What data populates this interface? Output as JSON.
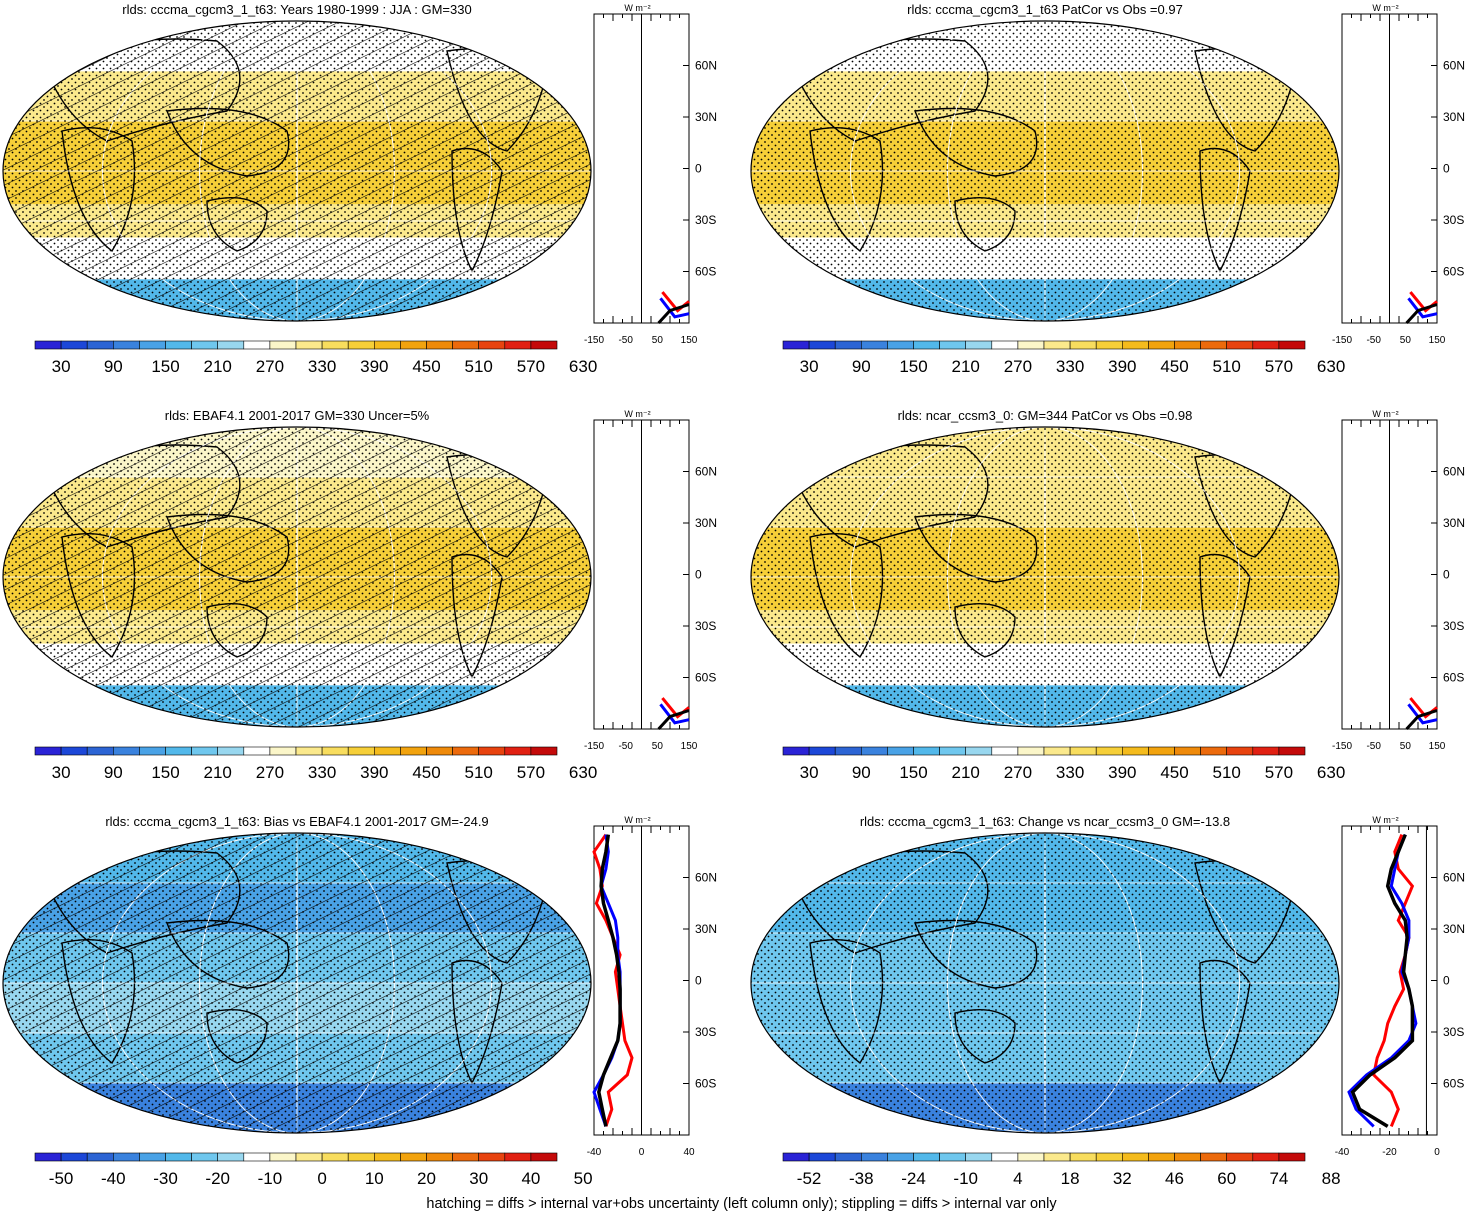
{
  "footer": "hatching = diffs > internal var+obs uncertainty (left column only); stippling = diffs > internal var only",
  "colors": {
    "abs": [
      "#2a23d6",
      "#1c47d8",
      "#2c64d4",
      "#3a82de",
      "#49a2e6",
      "#52b8ea",
      "#6fc7ee",
      "#98d7ef",
      "#ffffff",
      "#fbf6c9",
      "#fbe98c",
      "#f8dd5e",
      "#f6cf38",
      "#f4bb1d",
      "#f2a30e",
      "#ef8a0a",
      "#ec6a0c",
      "#e8430f",
      "#e12012",
      "#c40a0a"
    ],
    "diff": [
      "#2a23d6",
      "#1c47d8",
      "#2c64d4",
      "#3a82de",
      "#49a2e6",
      "#52b8ea",
      "#6fc7ee",
      "#98d7ef",
      "#ffffff",
      "#fbf6c9",
      "#fbe98c",
      "#f8dd5e",
      "#f6cf38",
      "#f4bb1d",
      "#f2a30e",
      "#ef8a0a",
      "#ec6a0c",
      "#e8430f",
      "#e12012",
      "#c40a0a"
    ]
  },
  "lat_labels": [
    "60N",
    "30N",
    "0",
    "30S",
    "60S"
  ],
  "panels": [
    {
      "id": "p1",
      "title": "rlds: cccma_cgcm3_1_t63: Years 1980-1999 : JJA : GM=330",
      "palette": "abs",
      "hatch": true,
      "stipple": true,
      "colorbar_labels": [
        "30",
        "90",
        "150",
        "210",
        "270",
        "330",
        "390",
        "450",
        "510",
        "570",
        "630"
      ],
      "profile_xticks": [
        "-150",
        "-50",
        "50",
        "150"
      ],
      "profile_units": "W m⁻²"
    },
    {
      "id": "p2",
      "title": "rlds: cccma_cgcm3_1_t63 PatCor vs Obs =0.97",
      "palette": "abs",
      "hatch": false,
      "stipple": true,
      "colorbar_labels": [
        "30",
        "90",
        "150",
        "210",
        "270",
        "330",
        "390",
        "450",
        "510",
        "570",
        "630"
      ],
      "profile_xticks": [
        "-150",
        "-50",
        "50",
        "150"
      ],
      "profile_units": "W m⁻²"
    },
    {
      "id": "p3",
      "title": "rlds: EBAF4.1 2001-2017 GM=330 Uncer=5%",
      "palette": "abs",
      "hatch": true,
      "stipple": true,
      "colorbar_labels": [
        "30",
        "90",
        "150",
        "210",
        "270",
        "330",
        "390",
        "450",
        "510",
        "570",
        "630"
      ],
      "profile_xticks": [
        "-150",
        "-50",
        "50",
        "150"
      ],
      "profile_units": "W m⁻²"
    },
    {
      "id": "p4",
      "title": "rlds: ncar_ccsm3_0: GM=344 PatCor vs Obs =0.98",
      "palette": "abs",
      "hatch": false,
      "stipple": true,
      "colorbar_labels": [
        "30",
        "90",
        "150",
        "210",
        "270",
        "330",
        "390",
        "450",
        "510",
        "570",
        "630"
      ],
      "profile_xticks": [
        "-150",
        "-50",
        "50",
        "150"
      ],
      "profile_units": "W m⁻²"
    },
    {
      "id": "p5",
      "title": "rlds: cccma_cgcm3_1_t63: Bias vs EBAF4.1 2001-2017 GM=-24.9",
      "palette": "diff",
      "hatch": true,
      "stipple": true,
      "colorbar_labels": [
        "-50",
        "-40",
        "-30",
        "-20",
        "-10",
        "0",
        "10",
        "20",
        "30",
        "40",
        "50"
      ],
      "profile_xticks": [
        "-40",
        "0",
        "40"
      ],
      "profile_units": "W m⁻²"
    },
    {
      "id": "p6",
      "title": "rlds: cccma_cgcm3_1_t63: Change vs ncar_ccsm3_0 GM=-13.8",
      "palette": "diff",
      "hatch": false,
      "stipple": true,
      "colorbar_labels": [
        "-52",
        "-38",
        "-24",
        "-10",
        "4",
        "18",
        "32",
        "46",
        "60",
        "74",
        "88"
      ],
      "profile_xticks": [
        "-40",
        "-20",
        "0"
      ],
      "profile_units": "W m⁻²"
    }
  ],
  "chart_data": [
    {
      "type": "heatmap",
      "title": "rlds: cccma_cgcm3_1_t63: Years 1980-1999 : JJA : GM=330",
      "colorbar": {
        "levels": [
          30,
          90,
          150,
          210,
          270,
          330,
          390,
          450,
          510,
          570,
          630
        ]
      },
      "zonal_bands": [
        {
          "lat": [
            60,
            90
          ],
          "value": 270
        },
        {
          "lat": [
            30,
            60
          ],
          "value": 330
        },
        {
          "lat": [
            -20,
            30
          ],
          "value": 410
        },
        {
          "lat": [
            -40,
            -20
          ],
          "value": 330
        },
        {
          "lat": [
            -65,
            -40
          ],
          "value": 270
        },
        {
          "lat": [
            -90,
            -65
          ],
          "value": 180
        }
      ],
      "profile": {
        "xlim": [
          -150,
          150
        ],
        "ylim": [
          -90,
          90
        ]
      }
    },
    {
      "type": "heatmap",
      "title": "rlds: cccma_cgcm3_1_t63 PatCor vs Obs =0.97",
      "colorbar": {
        "levels": [
          30,
          90,
          150,
          210,
          270,
          330,
          390,
          450,
          510,
          570,
          630
        ]
      },
      "zonal_bands": [
        {
          "lat": [
            60,
            90
          ],
          "value": 270
        },
        {
          "lat": [
            30,
            60
          ],
          "value": 330
        },
        {
          "lat": [
            -20,
            30
          ],
          "value": 410
        },
        {
          "lat": [
            -40,
            -20
          ],
          "value": 330
        },
        {
          "lat": [
            -65,
            -40
          ],
          "value": 270
        },
        {
          "lat": [
            -90,
            -65
          ],
          "value": 180
        }
      ],
      "profile": {
        "xlim": [
          -150,
          150
        ],
        "ylim": [
          -90,
          90
        ]
      }
    },
    {
      "type": "heatmap",
      "title": "rlds: EBAF4.1 2001-2017 GM=330 Uncer=5%",
      "colorbar": {
        "levels": [
          30,
          90,
          150,
          210,
          270,
          330,
          390,
          450,
          510,
          570,
          630
        ]
      },
      "zonal_bands": [
        {
          "lat": [
            60,
            90
          ],
          "value": 300
        },
        {
          "lat": [
            30,
            60
          ],
          "value": 360
        },
        {
          "lat": [
            -20,
            30
          ],
          "value": 410
        },
        {
          "lat": [
            -40,
            -20
          ],
          "value": 340
        },
        {
          "lat": [
            -65,
            -40
          ],
          "value": 270
        },
        {
          "lat": [
            -90,
            -65
          ],
          "value": 180
        }
      ],
      "profile": {
        "xlim": [
          -150,
          150
        ],
        "ylim": [
          -90,
          90
        ]
      }
    },
    {
      "type": "heatmap",
      "title": "rlds: ncar_ccsm3_0: GM=344 PatCor vs Obs =0.98",
      "colorbar": {
        "levels": [
          30,
          90,
          150,
          210,
          270,
          330,
          390,
          450,
          510,
          570,
          630
        ]
      },
      "zonal_bands": [
        {
          "lat": [
            60,
            90
          ],
          "value": 330
        },
        {
          "lat": [
            30,
            60
          ],
          "value": 360
        },
        {
          "lat": [
            -20,
            30
          ],
          "value": 420
        },
        {
          "lat": [
            -40,
            -20
          ],
          "value": 350
        },
        {
          "lat": [
            -65,
            -40
          ],
          "value": 280
        },
        {
          "lat": [
            -90,
            -65
          ],
          "value": 180
        }
      ],
      "profile": {
        "xlim": [
          -150,
          150
        ],
        "ylim": [
          -90,
          90
        ]
      }
    },
    {
      "type": "heatmap",
      "title": "rlds: cccma_cgcm3_1_t63: Bias vs EBAF4.1 2001-2017 GM=-24.9",
      "colorbar": {
        "levels": [
          -50,
          -40,
          -30,
          -20,
          -10,
          0,
          10,
          20,
          30,
          40,
          50
        ]
      },
      "zonal_bands": [
        {
          "lat": [
            60,
            90
          ],
          "value": -25
        },
        {
          "lat": [
            30,
            60
          ],
          "value": -35
        },
        {
          "lat": [
            0,
            30
          ],
          "value": -22
        },
        {
          "lat": [
            -30,
            0
          ],
          "value": -18
        },
        {
          "lat": [
            -60,
            -30
          ],
          "value": -20
        },
        {
          "lat": [
            -90,
            -60
          ],
          "value": -40
        }
      ],
      "profile": {
        "xlim": [
          -40,
          40
        ],
        "ylim": [
          -90,
          90
        ],
        "series": [
          {
            "color": "red",
            "lat": [
              85,
              75,
              65,
              55,
              45,
              35,
              25,
              15,
              5,
              -5,
              -15,
              -25,
              -35,
              -45,
              -55,
              -65,
              -75,
              -85
            ],
            "value": [
              -30,
              -40,
              -35,
              -33,
              -38,
              -30,
              -24,
              -18,
              -22,
              -20,
              -18,
              -16,
              -14,
              -8,
              -12,
              -28,
              -25,
              -30
            ]
          },
          {
            "color": "blue",
            "lat": [
              85,
              75,
              65,
              55,
              45,
              35,
              25,
              15,
              5,
              -5,
              -15,
              -25,
              -35,
              -45,
              -55,
              -65,
              -75,
              -85
            ],
            "value": [
              -30,
              -28,
              -30,
              -34,
              -28,
              -22,
              -20,
              -20,
              -18,
              -18,
              -18,
              -18,
              -20,
              -25,
              -32,
              -40,
              -35,
              -30
            ]
          },
          {
            "color": "black",
            "lat": [
              85,
              75,
              65,
              55,
              45,
              35,
              25,
              15,
              5,
              -5,
              -15,
              -25,
              -35,
              -45,
              -55,
              -65,
              -75,
              -85
            ],
            "value": [
              -28,
              -30,
              -33,
              -34,
              -32,
              -28,
              -24,
              -21,
              -19,
              -18,
              -18,
              -18,
              -20,
              -26,
              -32,
              -36,
              -33,
              -30
            ]
          }
        ]
      }
    },
    {
      "type": "heatmap",
      "title": "rlds: cccma_cgcm3_1_t63: Change vs ncar_ccsm3_0 GM=-13.8",
      "colorbar": {
        "levels": [
          -52,
          -38,
          -24,
          -10,
          4,
          18,
          32,
          46,
          60,
          74,
          88
        ]
      },
      "zonal_bands": [
        {
          "lat": [
            60,
            90
          ],
          "value": -24
        },
        {
          "lat": [
            30,
            60
          ],
          "value": -18
        },
        {
          "lat": [
            0,
            30
          ],
          "value": -14
        },
        {
          "lat": [
            -30,
            0
          ],
          "value": -12
        },
        {
          "lat": [
            -60,
            -30
          ],
          "value": -14
        },
        {
          "lat": [
            -90,
            -60
          ],
          "value": -38
        }
      ],
      "profile": {
        "xlim": [
          -48,
          6
        ],
        "ylim": [
          -90,
          90
        ],
        "series": [
          {
            "color": "red",
            "lat": [
              85,
              75,
              65,
              55,
              45,
              35,
              25,
              15,
              5,
              -5,
              -15,
              -25,
              -35,
              -45,
              -55,
              -65,
              -75,
              -85
            ],
            "value": [
              -14,
              -18,
              -16,
              -8,
              -12,
              -16,
              -10,
              -12,
              -15,
              -13,
              -18,
              -22,
              -24,
              -28,
              -30,
              -20,
              -16,
              -20
            ]
          },
          {
            "color": "blue",
            "lat": [
              85,
              75,
              65,
              55,
              45,
              35,
              25,
              15,
              5,
              -5,
              -15,
              -25,
              -35,
              -45,
              -55,
              -65,
              -75,
              -85
            ],
            "value": [
              -12,
              -16,
              -18,
              -20,
              -14,
              -10,
              -10,
              -12,
              -14,
              -10,
              -8,
              -6,
              -10,
              -20,
              -34,
              -44,
              -40,
              -30
            ]
          },
          {
            "color": "black",
            "lat": [
              85,
              75,
              65,
              55,
              45,
              35,
              25,
              15,
              5,
              -5,
              -15,
              -25,
              -35,
              -45,
              -55,
              -65,
              -75,
              -85
            ],
            "value": [
              -12,
              -16,
              -20,
              -22,
              -18,
              -12,
              -11,
              -12,
              -13,
              -10,
              -8,
              -8,
              -8,
              -18,
              -32,
              -42,
              -38,
              -22
            ]
          }
        ]
      }
    }
  ]
}
